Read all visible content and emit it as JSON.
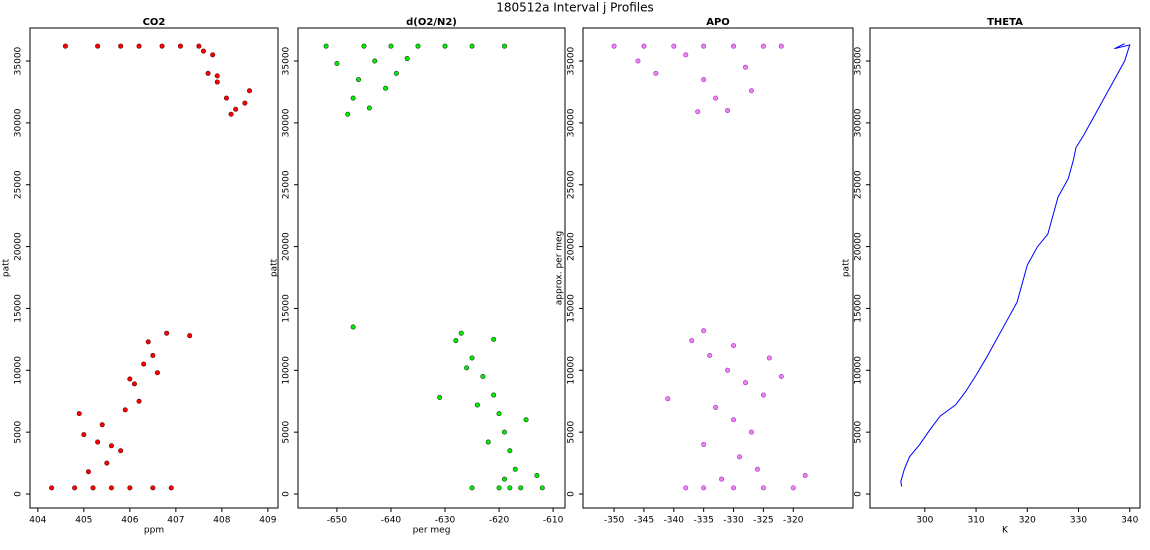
{
  "title": "180512a   Interval j Profiles",
  "chart_data": [
    {
      "type": "scatter",
      "title": "CO2",
      "x_label": "ppm",
      "y_label": "patt",
      "color": "#ff0000",
      "stroke": "#5a0000",
      "xlim": [
        403.83,
        409.22
      ],
      "ylim": [
        -1130,
        37670
      ],
      "xticks": [
        404,
        405,
        406,
        407,
        408,
        409
      ],
      "yticks": [
        0,
        5000,
        10000,
        15000,
        20000,
        25000,
        30000,
        35000
      ],
      "x": [
        404.3,
        404.8,
        405.2,
        405.6,
        406.0,
        406.5,
        406.9,
        405.1,
        405.3,
        405.5,
        405.4,
        405.8,
        405.9,
        406.1,
        406.3,
        406.4,
        406.2,
        406.6,
        406.8,
        405.0,
        404.9,
        405.6,
        406.0,
        406.5,
        407.3,
        404.6,
        405.3,
        405.8,
        406.2,
        406.7,
        407.1,
        407.5,
        407.8,
        407.7,
        407.9,
        408.1,
        408.3,
        408.6,
        408.2,
        407.6,
        407.9,
        408.5
      ],
      "values": [
        500,
        500,
        500,
        500,
        500,
        500,
        500,
        1800,
        4200,
        2500,
        5600,
        3500,
        6800,
        8900,
        10500,
        12300,
        7500,
        9800,
        13000,
        4800,
        6500,
        3900,
        9300,
        11200,
        12800,
        36200,
        36200,
        36200,
        36200,
        36200,
        36200,
        36200,
        35500,
        34000,
        33300,
        32000,
        31100,
        32600,
        30700,
        35800,
        33800,
        31600
      ]
    },
    {
      "type": "scatter",
      "title": "d(O2/N2)",
      "x_label": "per meg",
      "y_label": "patt",
      "color": "#00ee00",
      "stroke": "#1a3a1a",
      "xlim": [
        -657.2,
        -607.8
      ],
      "ylim": [
        -1130,
        37670
      ],
      "xticks": [
        -650,
        -640,
        -630,
        -620,
        -610
      ],
      "yticks": [
        0,
        5000,
        10000,
        15000,
        20000,
        25000,
        30000,
        35000
      ],
      "x": [
        -625,
        -620,
        -616,
        -612,
        -618,
        -628,
        -625,
        -623,
        -621,
        -620,
        -619,
        -618,
        -617,
        -622,
        -624,
        -626,
        -631,
        -615,
        -619,
        -613,
        -647,
        -627,
        -621,
        -652,
        -645,
        -640,
        -635,
        -630,
        -625,
        -619,
        -650,
        -646,
        -643,
        -647,
        -644,
        -648,
        -639,
        -641,
        -637
      ],
      "values": [
        500,
        500,
        500,
        500,
        500,
        12400,
        11000,
        9500,
        8000,
        6500,
        5000,
        3500,
        2000,
        4200,
        7200,
        10200,
        7800,
        6000,
        1200,
        1500,
        13500,
        13000,
        12500,
        36200,
        36200,
        36200,
        36200,
        36200,
        36200,
        36200,
        34800,
        33500,
        35000,
        32000,
        31200,
        30700,
        34000,
        32800,
        35200
      ]
    },
    {
      "type": "scatter",
      "title": "APO",
      "y_label": "approx. per meg",
      "color": "#ee82ee",
      "stroke": "#9a30d0",
      "xlim": [
        -355.2,
        -310
      ],
      "ylim": [
        -1130,
        37670
      ],
      "xticks": [
        -350,
        -345,
        -340,
        -335,
        -330,
        -325,
        -320
      ],
      "yticks": [
        0,
        5000,
        10000,
        15000,
        20000,
        25000,
        30000,
        35000
      ],
      "x": [
        -335,
        -330,
        -325,
        -320,
        -338,
        -337,
        -334,
        -331,
        -328,
        -325,
        -333,
        -330,
        -327,
        -335,
        -329,
        -326,
        -332,
        -341,
        -322,
        -318,
        -335,
        -330,
        -324,
        -350,
        -345,
        -340,
        -335,
        -330,
        -325,
        -322,
        -346,
        -343,
        -338,
        -335,
        -333,
        -331,
        -328,
        -336,
        -327
      ],
      "values": [
        500,
        500,
        500,
        500,
        500,
        12400,
        11200,
        10000,
        9000,
        8000,
        7000,
        6000,
        5000,
        4000,
        3000,
        2000,
        1200,
        7700,
        9500,
        1500,
        13200,
        12000,
        11000,
        36200,
        36200,
        36200,
        36200,
        36200,
        36200,
        36200,
        35000,
        34000,
        35500,
        33500,
        32000,
        31000,
        34500,
        30900,
        32600
      ]
    },
    {
      "type": "line",
      "title": "THETA",
      "x_label": "K",
      "y_label": "patt",
      "color": "#0000ff",
      "xlim": [
        289.3,
        342
      ],
      "ylim": [
        -1130,
        37670
      ],
      "xticks": [
        300,
        310,
        320,
        330,
        340
      ],
      "yticks": [
        0,
        5000,
        10000,
        15000,
        20000,
        25000,
        30000,
        35000
      ],
      "x": [
        295.5,
        295.3,
        296,
        297,
        299,
        301,
        303,
        306,
        308,
        310,
        312,
        314,
        316,
        318,
        319,
        320,
        322,
        324,
        325,
        326,
        328,
        329,
        329.5,
        331,
        333,
        335,
        337,
        339,
        340,
        337,
        339
      ],
      "values": [
        600,
        1000,
        2000,
        3000,
        4000,
        5200,
        6300,
        7200,
        8300,
        9600,
        11000,
        12500,
        14000,
        15500,
        17000,
        18500,
        20000,
        21000,
        22500,
        24000,
        25500,
        27000,
        28000,
        29000,
        30500,
        32000,
        33500,
        35000,
        36300,
        36000,
        36400
      ]
    }
  ]
}
